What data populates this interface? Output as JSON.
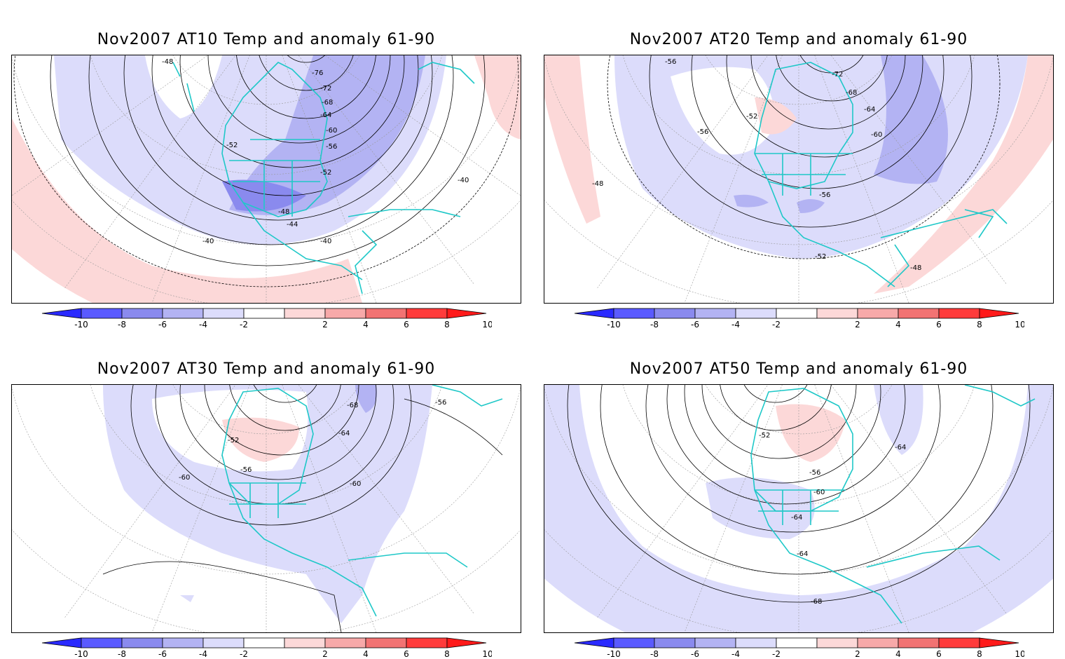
{
  "panels": [
    {
      "title": "Nov2007 AT10 Temp and anomaly 61-90",
      "contour_labels": [
        "-48",
        "-76",
        "-72",
        "-68",
        "-64",
        "-60",
        "-56",
        "-52",
        "-52",
        "-48",
        "-44",
        "-40",
        "-40",
        "-40"
      ]
    },
    {
      "title": "Nov2007 AT20 Temp and anomaly 61-90",
      "contour_labels": [
        "-56",
        "-72",
        "-68",
        "-64",
        "-60",
        "-52",
        "-56",
        "-56",
        "-52",
        "-48",
        "-48"
      ]
    },
    {
      "title": "Nov2007 AT30 Temp and anomaly 61-90",
      "contour_labels": [
        "-68",
        "-56",
        "-64",
        "-52",
        "-56",
        "-60",
        "-60"
      ]
    },
    {
      "title": "Nov2007 AT50 Temp and anomaly 61-90",
      "contour_labels": [
        "-52",
        "-56",
        "-64",
        "-60",
        "-64",
        "-64",
        "-68"
      ]
    }
  ],
  "colorbar": {
    "ticks": [
      "-10",
      "-8",
      "-6",
      "-4",
      "-2",
      "2",
      "4",
      "6",
      "8",
      "10"
    ],
    "colors": [
      "#2a2aff",
      "#5a5aff",
      "#8a8aee",
      "#b3b3f3",
      "#dcdcfb",
      "#ffffff",
      "#fcd8d8",
      "#f7a9a9",
      "#f27373",
      "#ff3b3b",
      "#ff1a1a"
    ]
  },
  "style": {
    "coastline_color": "#1fc8c8",
    "contour_color": "#000000",
    "anomaly_negative_light": "#dcdcfb",
    "anomaly_negative_mid": "#b3b3f3",
    "anomaly_negative_strong": "#8a8aee",
    "anomaly_positive_light": "#fcd8d8",
    "anomaly_positive_mid": "#f7a9a9"
  }
}
